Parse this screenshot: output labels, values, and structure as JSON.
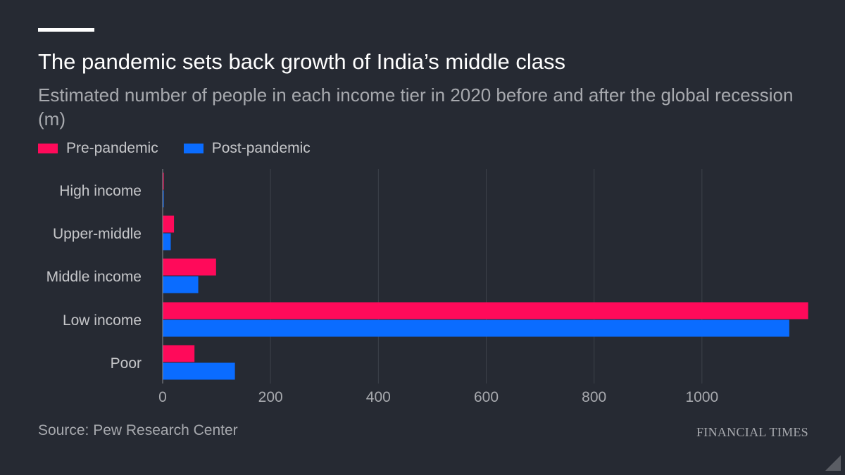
{
  "title": "The pandemic sets back growth of India’s middle class",
  "subtitle": "Estimated number of people in each income tier in 2020 before and after the global recession (m)",
  "legend": [
    {
      "label": "Pre-pandemic",
      "color": "#ff0a5a"
    },
    {
      "label": "Post-pandemic",
      "color": "#0a6cff"
    }
  ],
  "source": "Source: Pew Research Center",
  "brand": "FINANCIAL TIMES",
  "chart_data": {
    "type": "bar",
    "orientation": "horizontal",
    "title": "The pandemic sets back growth of India’s middle class",
    "subtitle": "Estimated number of people in each income tier in 2020 before and after the global recession (m)",
    "categories": [
      "High income",
      "Upper-middle",
      "Middle income",
      "Low income",
      "Poor"
    ],
    "series": [
      {
        "name": "Pre-pandemic",
        "color": "#ff0a5a",
        "values": [
          2,
          21,
          99,
          1197,
          59
        ]
      },
      {
        "name": "Post-pandemic",
        "color": "#0a6cff",
        "values": [
          1,
          15,
          66,
          1162,
          134
        ]
      }
    ],
    "xlim": [
      0,
      1200
    ],
    "ticks": [
      0,
      200,
      400,
      600,
      800,
      1000
    ],
    "tick_labels": [
      "0",
      "200",
      "400",
      "600",
      "800",
      "1000"
    ],
    "xlabel": "",
    "ylabel": "",
    "grid": true,
    "legend_position": "top-left"
  }
}
